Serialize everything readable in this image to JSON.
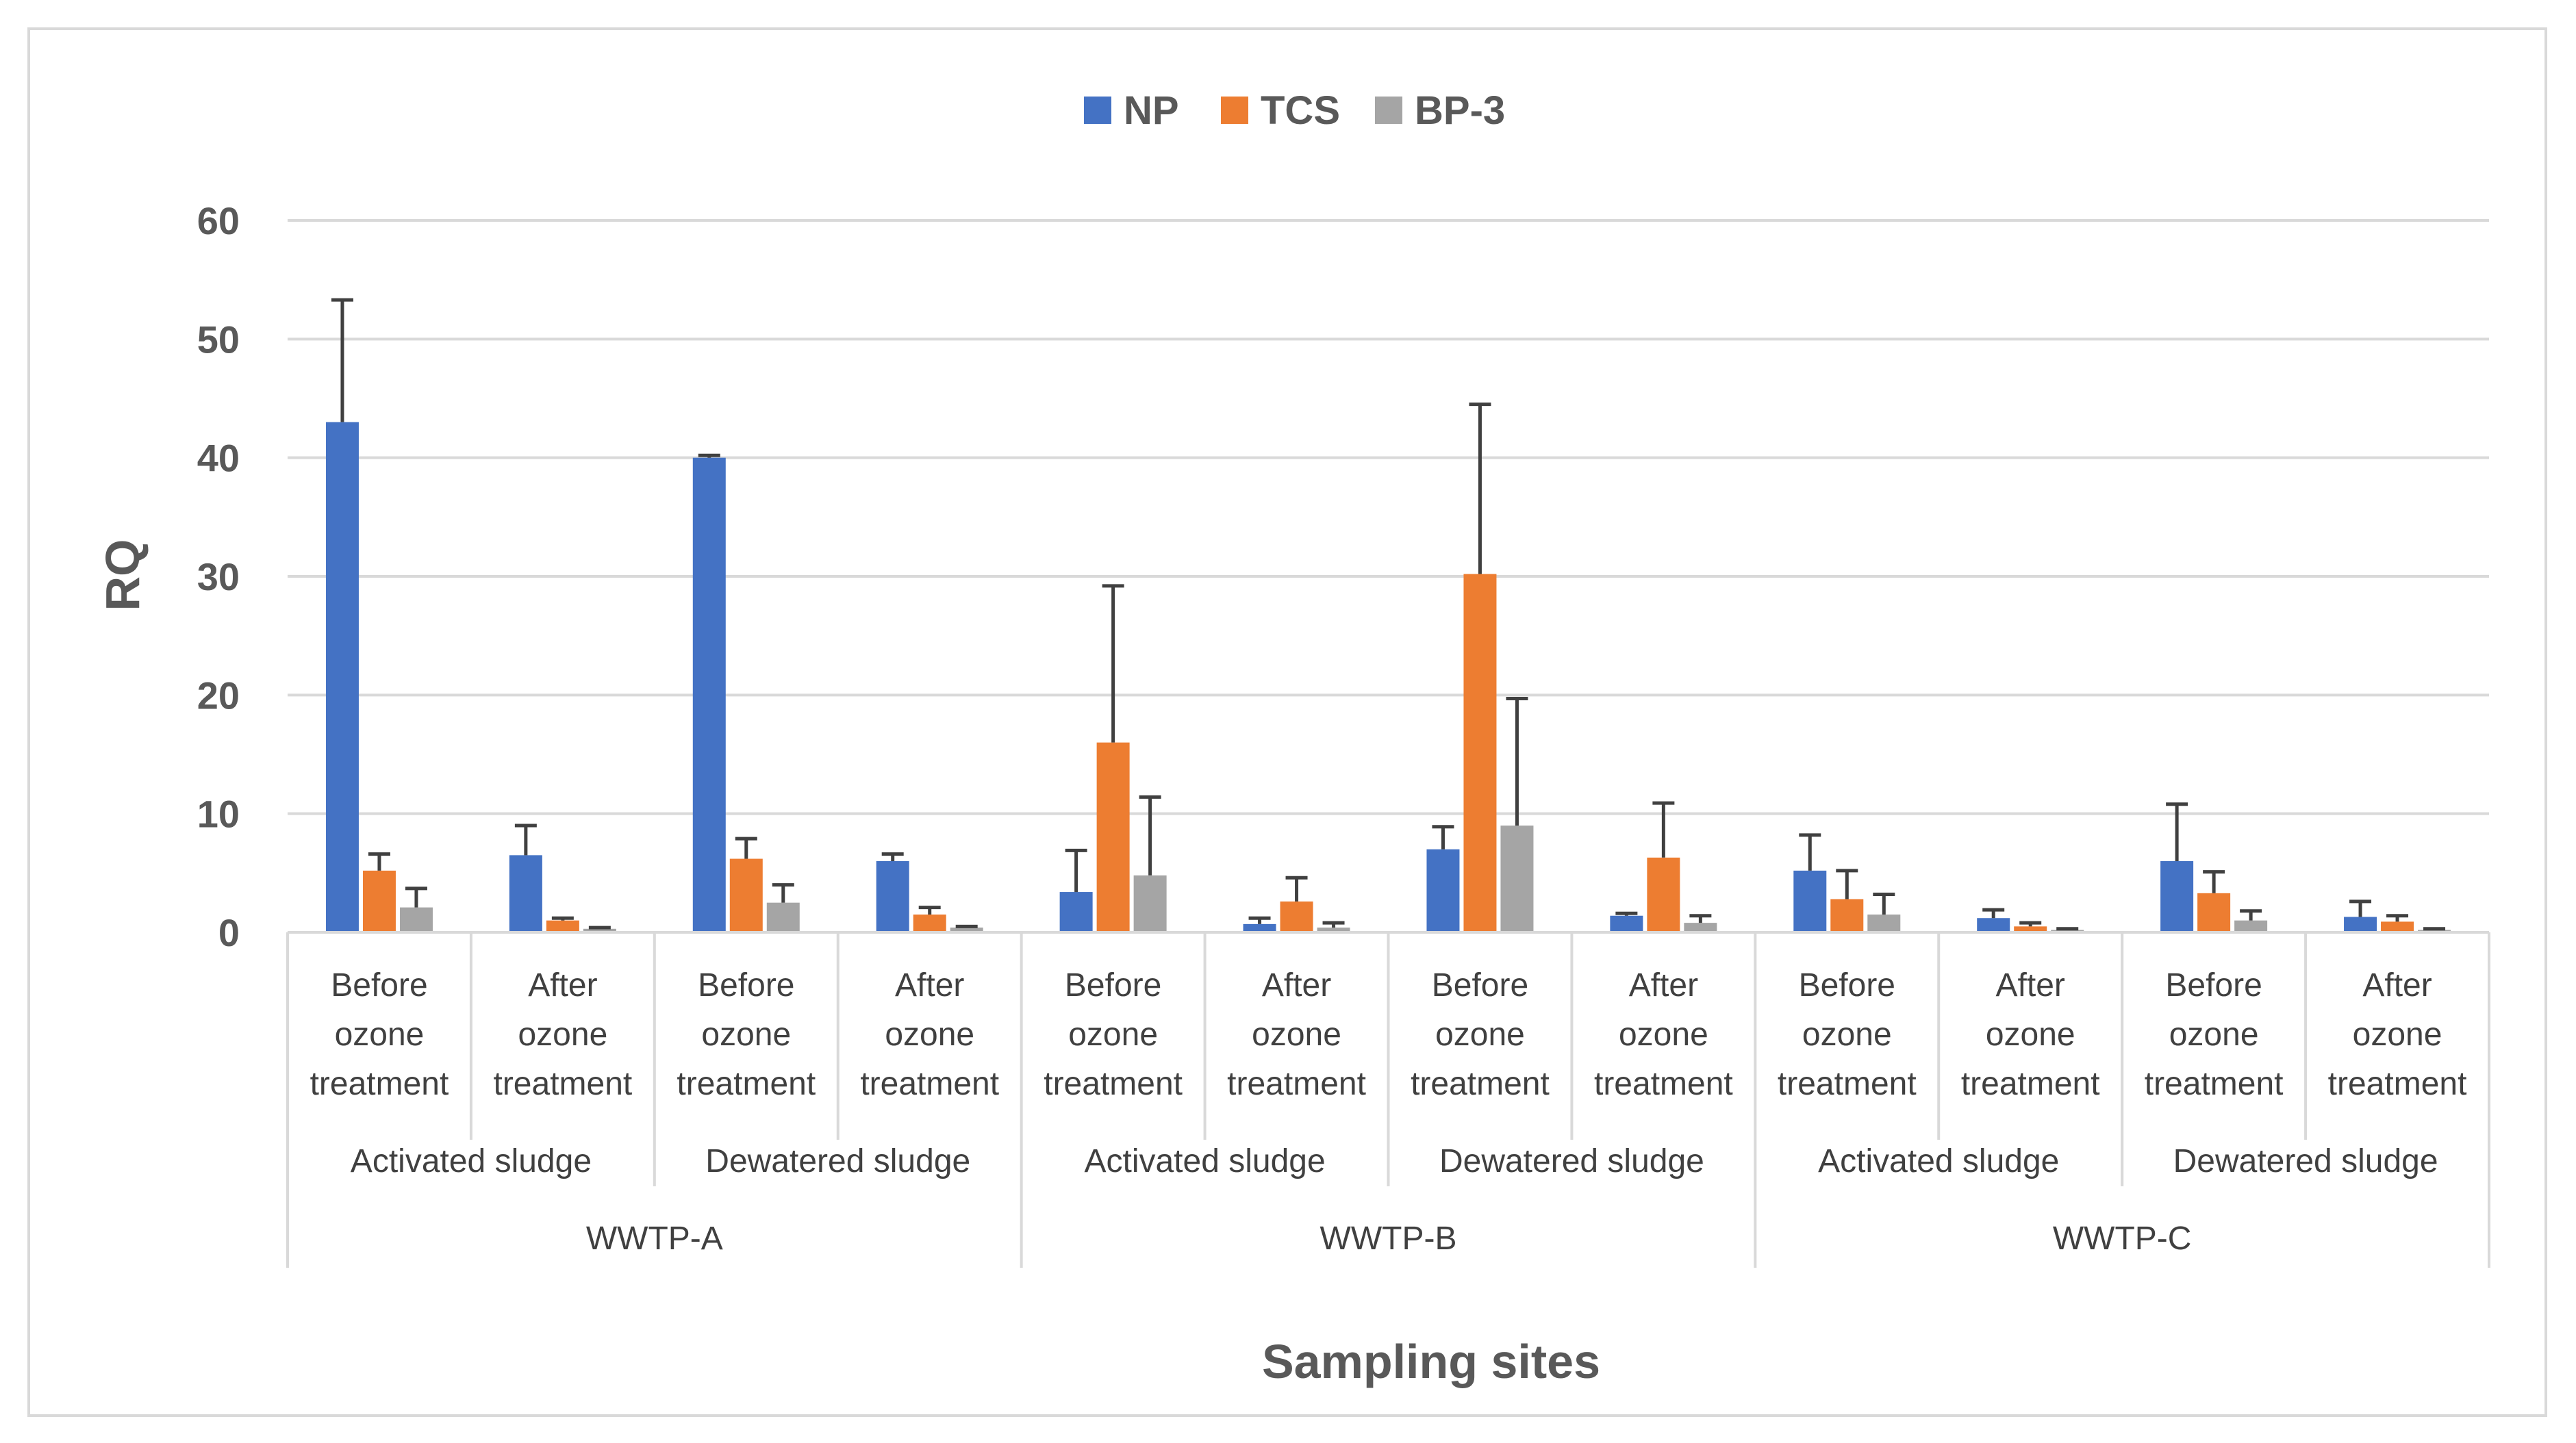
{
  "chart_data": {
    "type": "bar",
    "title": "",
    "xlabel": "Sampling sites",
    "ylabel": "RQ",
    "ylim": [
      0,
      60
    ],
    "yticks": [
      0,
      10,
      20,
      30,
      40,
      50,
      60
    ],
    "grid": true,
    "legend_position": "top-center",
    "categories": [
      {
        "site": "WWTP-A",
        "sludge": "Activated sludge",
        "treatment": [
          "Before",
          "ozone",
          "treatment"
        ]
      },
      {
        "site": "WWTP-A",
        "sludge": "Activated sludge",
        "treatment": [
          "After",
          "ozone",
          "treatment"
        ]
      },
      {
        "site": "WWTP-A",
        "sludge": "Dewatered sludge",
        "treatment": [
          "Before",
          "ozone",
          "treatment"
        ]
      },
      {
        "site": "WWTP-A",
        "sludge": "Dewatered sludge",
        "treatment": [
          "After",
          "ozone",
          "treatment"
        ]
      },
      {
        "site": "WWTP-B",
        "sludge": "Activated sludge",
        "treatment": [
          "Before",
          "ozone",
          "treatment"
        ]
      },
      {
        "site": "WWTP-B",
        "sludge": "Activated sludge",
        "treatment": [
          "After",
          "ozone",
          "treatment"
        ]
      },
      {
        "site": "WWTP-B",
        "sludge": "Dewatered sludge",
        "treatment": [
          "Before",
          "ozone",
          "treatment"
        ]
      },
      {
        "site": "WWTP-B",
        "sludge": "Dewatered sludge",
        "treatment": [
          "After",
          "ozone",
          "treatment"
        ]
      },
      {
        "site": "WWTP-C",
        "sludge": "Activated sludge",
        "treatment": [
          "Before",
          "ozone",
          "treatment"
        ]
      },
      {
        "site": "WWTP-C",
        "sludge": "Activated sludge",
        "treatment": [
          "After",
          "ozone",
          "treatment"
        ]
      },
      {
        "site": "WWTP-C",
        "sludge": "Dewatered sludge",
        "treatment": [
          "Before",
          "ozone",
          "treatment"
        ]
      },
      {
        "site": "WWTP-C",
        "sludge": "Dewatered sludge",
        "treatment": [
          "After",
          "ozone",
          "treatment"
        ]
      }
    ],
    "sludge_groups": [
      "Activated sludge",
      "Dewatered sludge",
      "Activated sludge",
      "Dewatered sludge",
      "Activated sludge",
      "Dewatered sludge"
    ],
    "sites": [
      "WWTP-A",
      "WWTP-B",
      "WWTP-C"
    ],
    "series": [
      {
        "name": "NP",
        "color": "#4472c4",
        "values": [
          43.0,
          6.5,
          40.0,
          6.0,
          3.4,
          0.7,
          7.0,
          1.4,
          5.2,
          1.2,
          6.0,
          1.3
        ],
        "errors": [
          10.3,
          2.5,
          0.2,
          0.6,
          3.5,
          0.5,
          1.9,
          0.2,
          3.0,
          0.7,
          4.8,
          1.3
        ]
      },
      {
        "name": "TCS",
        "color": "#ed7d31",
        "values": [
          5.2,
          1.0,
          6.2,
          1.5,
          16.0,
          2.6,
          30.2,
          6.3,
          2.8,
          0.5,
          3.3,
          0.9
        ],
        "errors": [
          1.4,
          0.2,
          1.7,
          0.6,
          13.2,
          2.0,
          14.3,
          4.6,
          2.4,
          0.3,
          1.8,
          0.5
        ]
      },
      {
        "name": "BP-3",
        "color": "#a5a5a5",
        "values": [
          2.1,
          0.3,
          2.5,
          0.4,
          4.8,
          0.4,
          9.0,
          0.8,
          1.5,
          0.2,
          1.0,
          0.2
        ],
        "errors": [
          1.6,
          0.1,
          1.5,
          0.1,
          6.6,
          0.4,
          10.7,
          0.6,
          1.7,
          0.1,
          0.8,
          0.1
        ]
      }
    ]
  }
}
